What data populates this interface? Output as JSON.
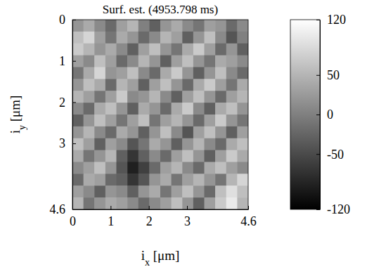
{
  "chart_data": {
    "type": "heatmap",
    "title": "Surf. est. (4953.798 ms)",
    "x_label": "ix [μm]",
    "y_label": "iy [μm]",
    "xlim": [
      0,
      4.6
    ],
    "ylim": [
      0,
      4.6
    ],
    "xticks": [
      0,
      1,
      2,
      3,
      4.6
    ],
    "yticks": [
      0,
      1,
      2,
      3,
      4.6
    ],
    "color": "gray",
    "color_range": [
      -120,
      120
    ],
    "color_ticks": [
      -120,
      -50,
      0,
      50,
      120
    ],
    "cells": [
      [
        20,
        40,
        10,
        -20,
        30,
        50,
        0,
        -30,
        20,
        40,
        10,
        -10,
        30,
        20,
        -20,
        10
      ],
      [
        60,
        80,
        30,
        -10,
        40,
        20,
        -20,
        10,
        50,
        30,
        -30,
        20,
        60,
        10,
        -40,
        0
      ],
      [
        70,
        50,
        20,
        40,
        10,
        -30,
        30,
        60,
        20,
        -10,
        40,
        70,
        30,
        -20,
        20,
        -30
      ],
      [
        30,
        10,
        60,
        30,
        -20,
        10,
        50,
        20,
        -30,
        30,
        60,
        20,
        -10,
        40,
        30,
        10
      ],
      [
        -10,
        40,
        80,
        20,
        30,
        60,
        10,
        -20,
        40,
        70,
        20,
        -30,
        20,
        60,
        10,
        -20
      ],
      [
        20,
        60,
        40,
        -20,
        50,
        30,
        -30,
        30,
        60,
        20,
        -20,
        40,
        70,
        30,
        -10,
        40
      ],
      [
        50,
        30,
        -10,
        30,
        70,
        10,
        20,
        50,
        10,
        -30,
        30,
        60,
        20,
        -20,
        30,
        50
      ],
      [
        10,
        -20,
        40,
        60,
        20,
        -30,
        40,
        20,
        -20,
        40,
        70,
        10,
        -30,
        40,
        60,
        20
      ],
      [
        -30,
        20,
        60,
        30,
        -10,
        30,
        60,
        -10,
        30,
        50,
        20,
        -20,
        30,
        70,
        20,
        -10
      ],
      [
        20,
        50,
        10,
        -20,
        40,
        20,
        -30,
        20,
        60,
        10,
        -40,
        30,
        60,
        20,
        -30,
        30
      ],
      [
        60,
        30,
        -30,
        30,
        10,
        -40,
        -10,
        40,
        20,
        -30,
        20,
        50,
        10,
        -20,
        40,
        60
      ],
      [
        40,
        -10,
        20,
        50,
        -30,
        -70,
        -30,
        10,
        -20,
        30,
        60,
        20,
        -30,
        30,
        70,
        40
      ],
      [
        10,
        30,
        60,
        20,
        -40,
        -90,
        -60,
        -20,
        30,
        50,
        10,
        -20,
        40,
        60,
        30,
        10
      ],
      [
        -20,
        40,
        30,
        -20,
        -30,
        -70,
        -40,
        20,
        40,
        -10,
        30,
        50,
        20,
        -10,
        50,
        80
      ],
      [
        30,
        10,
        -30,
        20,
        10,
        -30,
        20,
        40,
        -10,
        30,
        60,
        20,
        -20,
        60,
        90,
        60
      ],
      [
        50,
        -10,
        20,
        40,
        30,
        10,
        -20,
        10,
        30,
        60,
        20,
        -30,
        30,
        70,
        100,
        50
      ]
    ]
  }
}
